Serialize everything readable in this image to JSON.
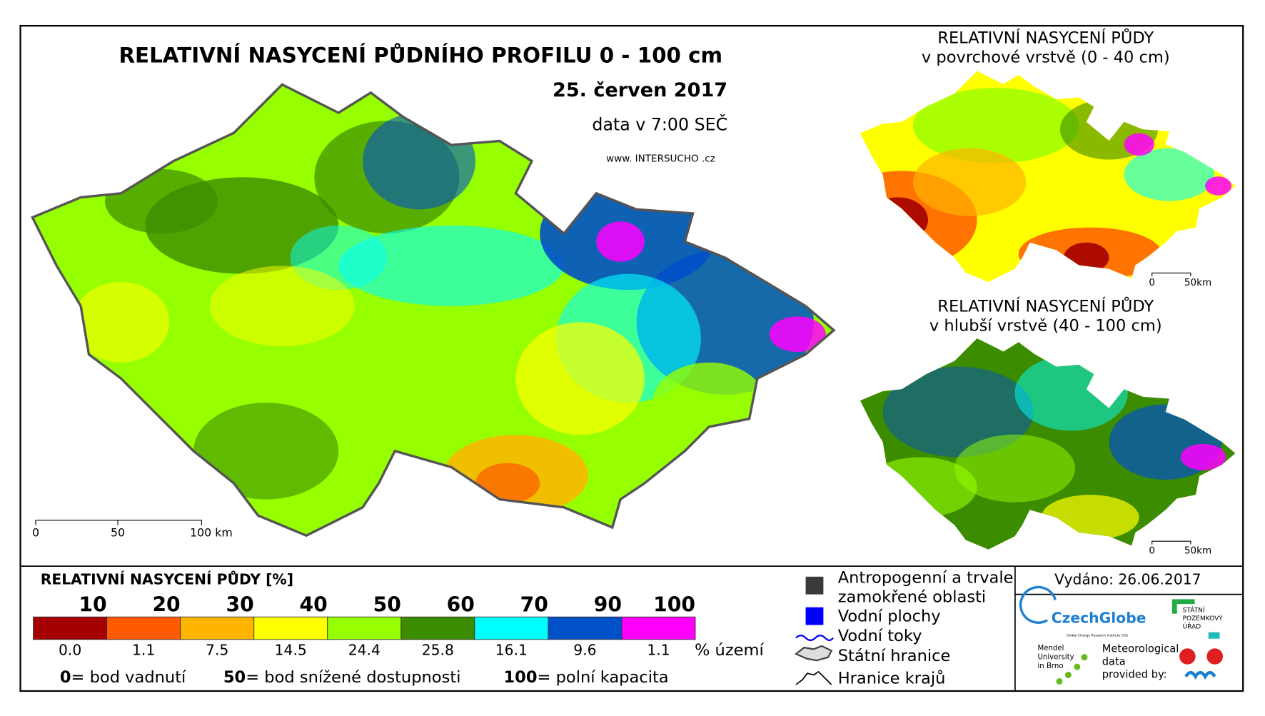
{
  "map": {
    "title": "RELATIVNÍ NASYCENÍ PŮDNÍHO PROFILU 0 - 100 cm",
    "date": "25. červen 2017",
    "data_time": "data v 7:00 SEČ",
    "website": "www. INTERSUCHO .cz",
    "scale_bar": {
      "labels": [
        "0",
        "50",
        "100 km"
      ]
    }
  },
  "insets": [
    {
      "title_lines": [
        "RELATIVNÍ NASYCENÍ PŮDY",
        "v povrchové vrstvě (0 - 40 cm)"
      ],
      "scale_labels": [
        "0",
        "50km"
      ]
    },
    {
      "title_lines": [
        "RELATIVNÍ NASYCENÍ PŮDY",
        "v hlubší vrstvě (40 - 100 cm)"
      ],
      "scale_labels": [
        "0",
        "50km"
      ]
    }
  ],
  "legend": {
    "title": "RELATIVNÍ NASYCENÍ PŮDY [%]",
    "classes": [
      {
        "upper": "10",
        "share": "0.0",
        "color": "#a50000"
      },
      {
        "upper": "20",
        "share": "1.1",
        "color": "#ff5a00"
      },
      {
        "upper": "30",
        "share": "7.5",
        "color": "#ffb400"
      },
      {
        "upper": "40",
        "share": "14.5",
        "color": "#ffff00"
      },
      {
        "upper": "50",
        "share": "24.4",
        "color": "#96ff00"
      },
      {
        "upper": "60",
        "share": "25.8",
        "color": "#3c8c00"
      },
      {
        "upper": "70",
        "share": "16.1",
        "color": "#00ffff"
      },
      {
        "upper": "90",
        "share": "9.6",
        "color": "#0050c8"
      },
      {
        "upper": "100",
        "share": "1.1",
        "color": "#ff00ff"
      }
    ],
    "share_unit": "% území",
    "notes": [
      {
        "value": "0",
        "text": "= bod vadnutí"
      },
      {
        "value": "50",
        "text": "= bod snížené dostupnosti"
      },
      {
        "value": "100",
        "text": "= polní kapacita"
      }
    ]
  },
  "symbols": {
    "anthropogenic_lines": [
      "Antropogenní a trvale",
      "zamokřené oblasti"
    ],
    "water_bodies": "Vodní plochy",
    "rivers": "Vodní toky",
    "state_border": "Státní hranice",
    "regional_border": "Hranice krajů"
  },
  "footer": {
    "issued": "Vydáno: 26.06.2017",
    "czechglobe": "CzechGlobe",
    "czechglobe_sub": "Global Change Research Institute CAS",
    "spu_lines": [
      "STÁTNÍ",
      "POZEMKOVÝ",
      "ÚŘAD"
    ],
    "mendel_lines": [
      "Mendel",
      "University",
      "in Brno"
    ],
    "meteo_lines": [
      "Meteorological",
      "data",
      "provided by:"
    ]
  }
}
